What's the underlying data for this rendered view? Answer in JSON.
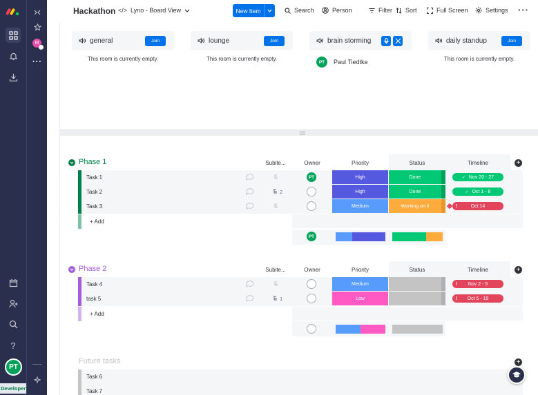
{
  "header": {
    "title": "Hackathon",
    "view": "Lyno - Board View",
    "new_item": "New Item",
    "search": "Search",
    "person": "Person",
    "filter": "Filter",
    "sort": "Sort",
    "fullscreen": "Full Screen",
    "settings": "Settings"
  },
  "rooms": [
    {
      "name": "general",
      "action": "Join",
      "state": "This room is currently empty."
    },
    {
      "name": "lounge",
      "action": "Join",
      "state": "This room is currently empty."
    },
    {
      "name": "brain storming",
      "member_initials": "PT",
      "member": "Paul Tiedtke"
    },
    {
      "name": "daily standup",
      "action": "Join",
      "state": "This room is currently empty."
    }
  ],
  "columns": {
    "subitems": "Subite...",
    "owner": "Owner",
    "priority": "Priority",
    "status": "Status",
    "timeline": "Timeline"
  },
  "groups": [
    {
      "title": "Phase 1",
      "color": "#037f4c",
      "rows": [
        {
          "name": "Task 1",
          "owner": "PT",
          "priority": "High",
          "status": "Done",
          "timeline": "Nov 20 - 27",
          "timeline_state": "done"
        },
        {
          "name": "Task 2",
          "subitems": "2",
          "priority": "High",
          "status": "Done",
          "timeline": "Oct 1 - 8",
          "timeline_state": "done"
        },
        {
          "name": "Task 3",
          "priority": "Medium",
          "status": "Working on it",
          "timeline": "Oct 14",
          "timeline_state": "overdue"
        }
      ],
      "add": "+ Add",
      "summary_owner": "PT"
    },
    {
      "title": "Phase 2",
      "color": "#a25ddc",
      "rows": [
        {
          "name": "Task 4",
          "priority": "Medium",
          "status": "",
          "timeline": "Nov 2 - 5",
          "timeline_state": "overdue"
        },
        {
          "name": "task 5",
          "subitems": "1",
          "priority": "Low",
          "status": "",
          "timeline": "Oct 5 - 19",
          "timeline_state": "overdue"
        }
      ],
      "add": "+ Add"
    },
    {
      "title": "Future tasks",
      "color": "#c4c4c4",
      "rows": [
        {
          "name": "Task 6"
        },
        {
          "name": "Task 7"
        }
      ]
    }
  ],
  "sidebar": {
    "user_initials": "PT",
    "user_badge": "Developer",
    "workspace_initial": "M"
  },
  "colors": {
    "accent": "#0073ea",
    "done": "#00c875",
    "working": "#fdab3d",
    "high": "#5559df",
    "medium": "#579bfc",
    "low": "#ff5ac4",
    "overdue": "#e2445c",
    "rail": "#292f4c"
  }
}
